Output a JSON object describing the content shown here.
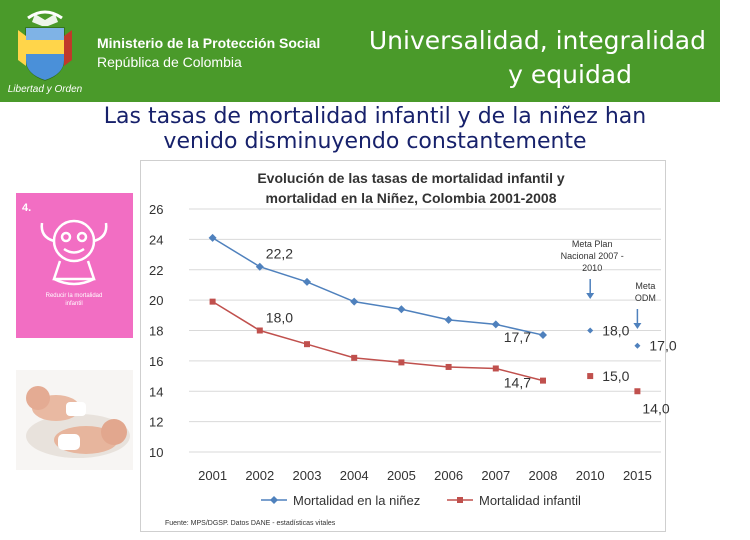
{
  "header": {
    "ministry": "Ministerio de la Protección Social",
    "republic": "República de Colombia",
    "seal_caption": "Libertad y Orden",
    "slogan_line1": "Universalidad, integralidad",
    "slogan_line2": "y equidad"
  },
  "slide": {
    "title_line1": "Las tasas de mortalidad infantil y de la niñez han",
    "title_line2": "venido disminuyendo constantemente"
  },
  "poster": {
    "number": "4.",
    "caption_line1": "Reducir la mortalidad",
    "caption_line2": "infantil"
  },
  "colors": {
    "header_green": "#4a9a2a",
    "title_blue": "#17216b",
    "series_ninez": "#4f81bd",
    "series_infantil": "#c0504d",
    "poster_pink": "#f26ec3"
  },
  "chart_data": {
    "type": "line",
    "title_line1": "Evolución de las tasas de mortalidad infantil y",
    "title_line2": "mortalidad en la Niñez, Colombia 2001-2008",
    "categories": [
      "2001",
      "2002",
      "2003",
      "2004",
      "2005",
      "2006",
      "2007",
      "2008",
      "2010",
      "2015"
    ],
    "y_ticks": [
      "26",
      "24",
      "22",
      "20",
      "18",
      "16",
      "14",
      "12",
      "10"
    ],
    "ylim": [
      10,
      26
    ],
    "series": [
      {
        "name": "Mortalidad en la niñez",
        "color": "#4f81bd",
        "marker": "diamond",
        "values": [
          24.1,
          22.2,
          21.2,
          19.9,
          19.4,
          18.7,
          18.4,
          17.7,
          null,
          null
        ]
      },
      {
        "name": "Mortalidad infantil",
        "color": "#c0504d",
        "marker": "square",
        "values": [
          19.9,
          18.0,
          17.1,
          16.2,
          15.9,
          15.6,
          15.5,
          14.7,
          null,
          null
        ]
      }
    ],
    "targets": [
      {
        "series": "Mortalidad en la niñez",
        "category": "2010",
        "value": 18.0
      },
      {
        "series": "Mortalidad infantil",
        "category": "2010",
        "value": 15.0
      },
      {
        "series": "Mortalidad en la niñez",
        "category": "2015",
        "value": 17.0
      },
      {
        "series": "Mortalidad infantil",
        "category": "2015",
        "value": 14.0
      }
    ],
    "data_labels": [
      {
        "text": "22,2",
        "category": "2002",
        "value": 22.2,
        "placement": "above-right"
      },
      {
        "text": "18,0",
        "category": "2002",
        "value": 18.0,
        "placement": "above-right"
      },
      {
        "text": "17,7",
        "category": "2008",
        "value": 17.7,
        "placement": "left"
      },
      {
        "text": "14,7",
        "category": "2008",
        "value": 14.7,
        "placement": "left"
      },
      {
        "text": "18,0",
        "category": "2010",
        "value": 18.0,
        "placement": "right"
      },
      {
        "text": "15,0",
        "category": "2010",
        "value": 15.0,
        "placement": "right"
      },
      {
        "text": "17,0",
        "category": "2015",
        "value": 17.0,
        "placement": "right"
      },
      {
        "text": "14,0",
        "category": "2015",
        "value": 14.0,
        "placement": "below-right"
      }
    ],
    "annotations": [
      {
        "lines": [
          "Meta Plan",
          "Nacional 2007 -",
          "2010"
        ],
        "category": "2010"
      },
      {
        "lines": [
          "Meta",
          "ODM"
        ],
        "category": "2015"
      }
    ],
    "legend_position": "bottom",
    "source": "Fuente: MPS/DGSP. Datos DANE - estadísticas vitales",
    "grid": true
  }
}
